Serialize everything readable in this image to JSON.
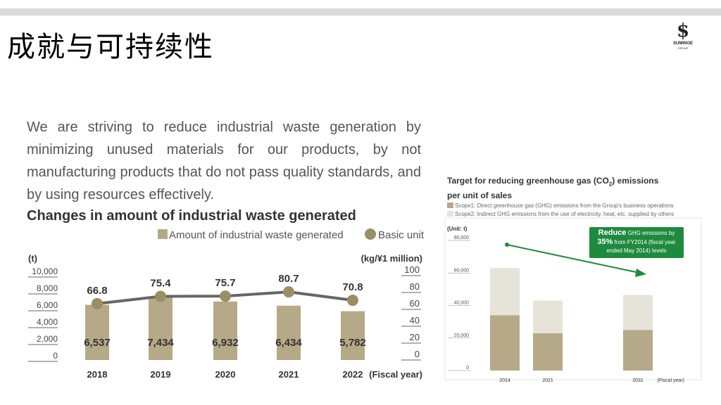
{
  "slide": {
    "title": "成就与可持续性"
  },
  "logo": {
    "brand": "SUMINOE",
    "sub": "GROUP"
  },
  "intro_text": "We are striving to reduce industrial waste generation by minimizing unused materials for our products, by not manufacturing products that do not pass quality standards, and by using resources effectively.",
  "chart_data": [
    {
      "type": "bar",
      "title": "Changes in amount of industrial waste generated",
      "categories": [
        "2018",
        "2019",
        "2020",
        "2021",
        "2022"
      ],
      "x_suffix": "(Fiscal year)",
      "series": [
        {
          "name": "Amount of industrial waste generated",
          "type": "bar",
          "axis": "left",
          "values": [
            6537,
            7434,
            6932,
            6434,
            5782
          ],
          "labels": [
            "6,537",
            "7,434",
            "6,932",
            "6,434",
            "5,782"
          ],
          "color": "#b5a988"
        },
        {
          "name": "Basic unit",
          "type": "line",
          "axis": "right",
          "values": [
            66.8,
            75.4,
            75.7,
            80.7,
            70.8
          ],
          "labels": [
            "66.8",
            "75.4",
            "75.7",
            "80.7",
            "70.8"
          ],
          "color": "#9a8f64"
        }
      ],
      "left_axis": {
        "unit": "(t)",
        "ylim": [
          0,
          10000
        ],
        "ticks": [
          "10,000",
          "8,000",
          "6,000",
          "4,000",
          "2,000",
          "0"
        ]
      },
      "right_axis": {
        "unit": "(kg/¥1 million)",
        "ylim": [
          0,
          100
        ],
        "ticks": [
          "100",
          "80",
          "60",
          "40",
          "20",
          "0"
        ]
      }
    },
    {
      "type": "bar",
      "stacked": true,
      "title_line1": "Target for reducing greenhouse gas (CO",
      "title_sub": "2",
      "title_line1_end": ") emissions",
      "title_line2": "per unit of sales",
      "unit": "(Unit: t)",
      "categories": [
        "2014",
        "2021",
        "2031"
      ],
      "x_suffix": "(Fiscal year)",
      "ylim": [
        0,
        80000
      ],
      "ticks": [
        "80,000",
        "60,000",
        "40,000",
        "20,000",
        "0"
      ],
      "series": [
        {
          "name": "Scope1: Direct greenhouse gas (GHG) emissions from the Group's business operations",
          "values": [
            34000,
            23000,
            25000
          ],
          "color": "#b5a988"
        },
        {
          "name": "Scope2: Indirect GHG emissions from the use of electricity, heat, etc. supplied by others",
          "values": [
            29000,
            20000,
            21500
          ],
          "color": "#e6e3d9"
        }
      ],
      "callout": {
        "bold": "Reduce",
        "rest1": " GHG emissions by",
        "pct": "35%",
        "rest2": " from FY2014 (fiscal year",
        "rest3": "ended May 2014) levels",
        "color": "#1e8a3e"
      }
    }
  ]
}
